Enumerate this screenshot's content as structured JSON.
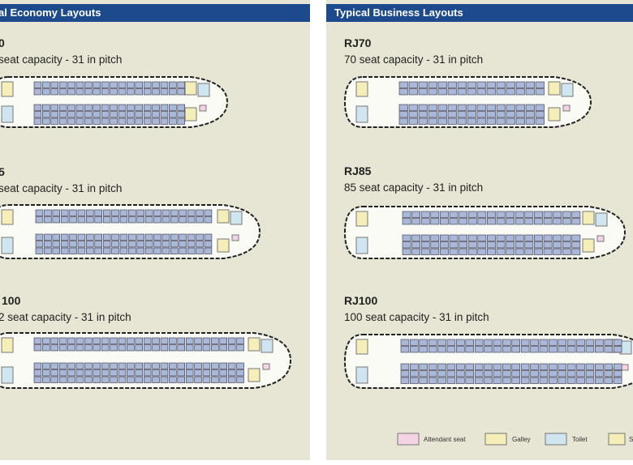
{
  "left_panel": {
    "header": "al Economy Layouts",
    "layouts": [
      {
        "name": "0",
        "capacity": "seat capacity - 31 in pitch"
      },
      {
        "name": "5",
        "capacity": "seat capacity - 31 in pitch"
      },
      {
        "name": "100",
        "capacity": "2 seat capacity - 31 in pitch"
      }
    ]
  },
  "right_panel": {
    "header": "Typical Business Layouts",
    "layouts": [
      {
        "name": "RJ70",
        "capacity": "70 seat capacity - 31 in pitch"
      },
      {
        "name": "RJ85",
        "capacity": "85 seat capacity - 31 in pitch"
      },
      {
        "name": "RJ100",
        "capacity": "100 seat capacity - 31 in pitch"
      }
    ]
  },
  "legend": [
    {
      "label": "Attendant seat"
    },
    {
      "label": "Galley"
    },
    {
      "label": "Toilet"
    },
    {
      "label": "S"
    }
  ]
}
